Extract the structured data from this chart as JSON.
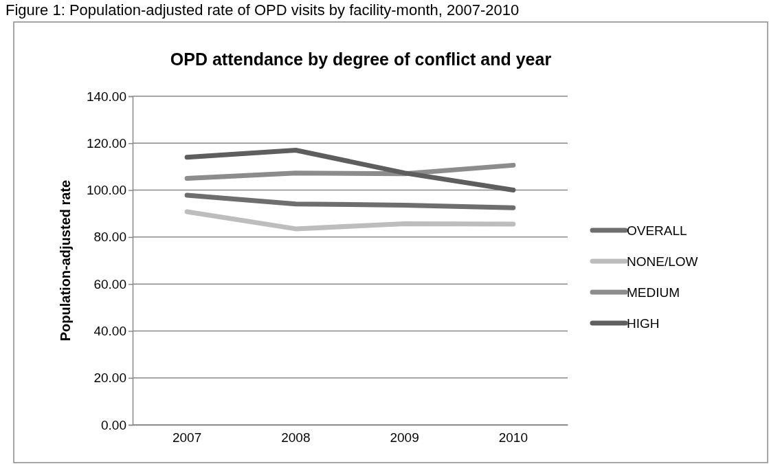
{
  "chart_data": {
    "type": "line",
    "title": "OPD attendance by degree of conflict and year",
    "ylabel": "Population-adjusted rate",
    "annotations": [
      "Figure 1: Population-adjusted rate of OPD visits by facility-month, 2007-2010"
    ],
    "categories": [
      "2007",
      "2008",
      "2009",
      "2010"
    ],
    "series": [
      {
        "name": "OVERALL",
        "color": "#6e6e6e",
        "values": [
          97.8,
          94.1,
          93.6,
          92.5
        ]
      },
      {
        "name": "NONE/LOW",
        "color": "#bdbdbd",
        "values": [
          90.8,
          83.5,
          85.7,
          85.5
        ]
      },
      {
        "name": "MEDIUM",
        "color": "#8c8c8c",
        "values": [
          105,
          107.3,
          107,
          110.6
        ]
      },
      {
        "name": "HIGH",
        "color": "#5e5e5e",
        "values": [
          114,
          117,
          107.3,
          100
        ]
      }
    ],
    "ylim": [
      0,
      140
    ],
    "yticks": [
      {
        "value": 0,
        "label": "0.00"
      },
      {
        "value": 20,
        "label": "20.00"
      },
      {
        "value": 40,
        "label": "40.00"
      },
      {
        "value": 60,
        "label": "60.00"
      },
      {
        "value": 80,
        "label": "80.00"
      },
      {
        "value": 100,
        "label": "100.00"
      },
      {
        "value": 120,
        "label": "120.00"
      },
      {
        "value": 140,
        "label": "140.00"
      }
    ],
    "grid": "y",
    "legend": "right",
    "marker": "none",
    "line_style": "solid"
  }
}
